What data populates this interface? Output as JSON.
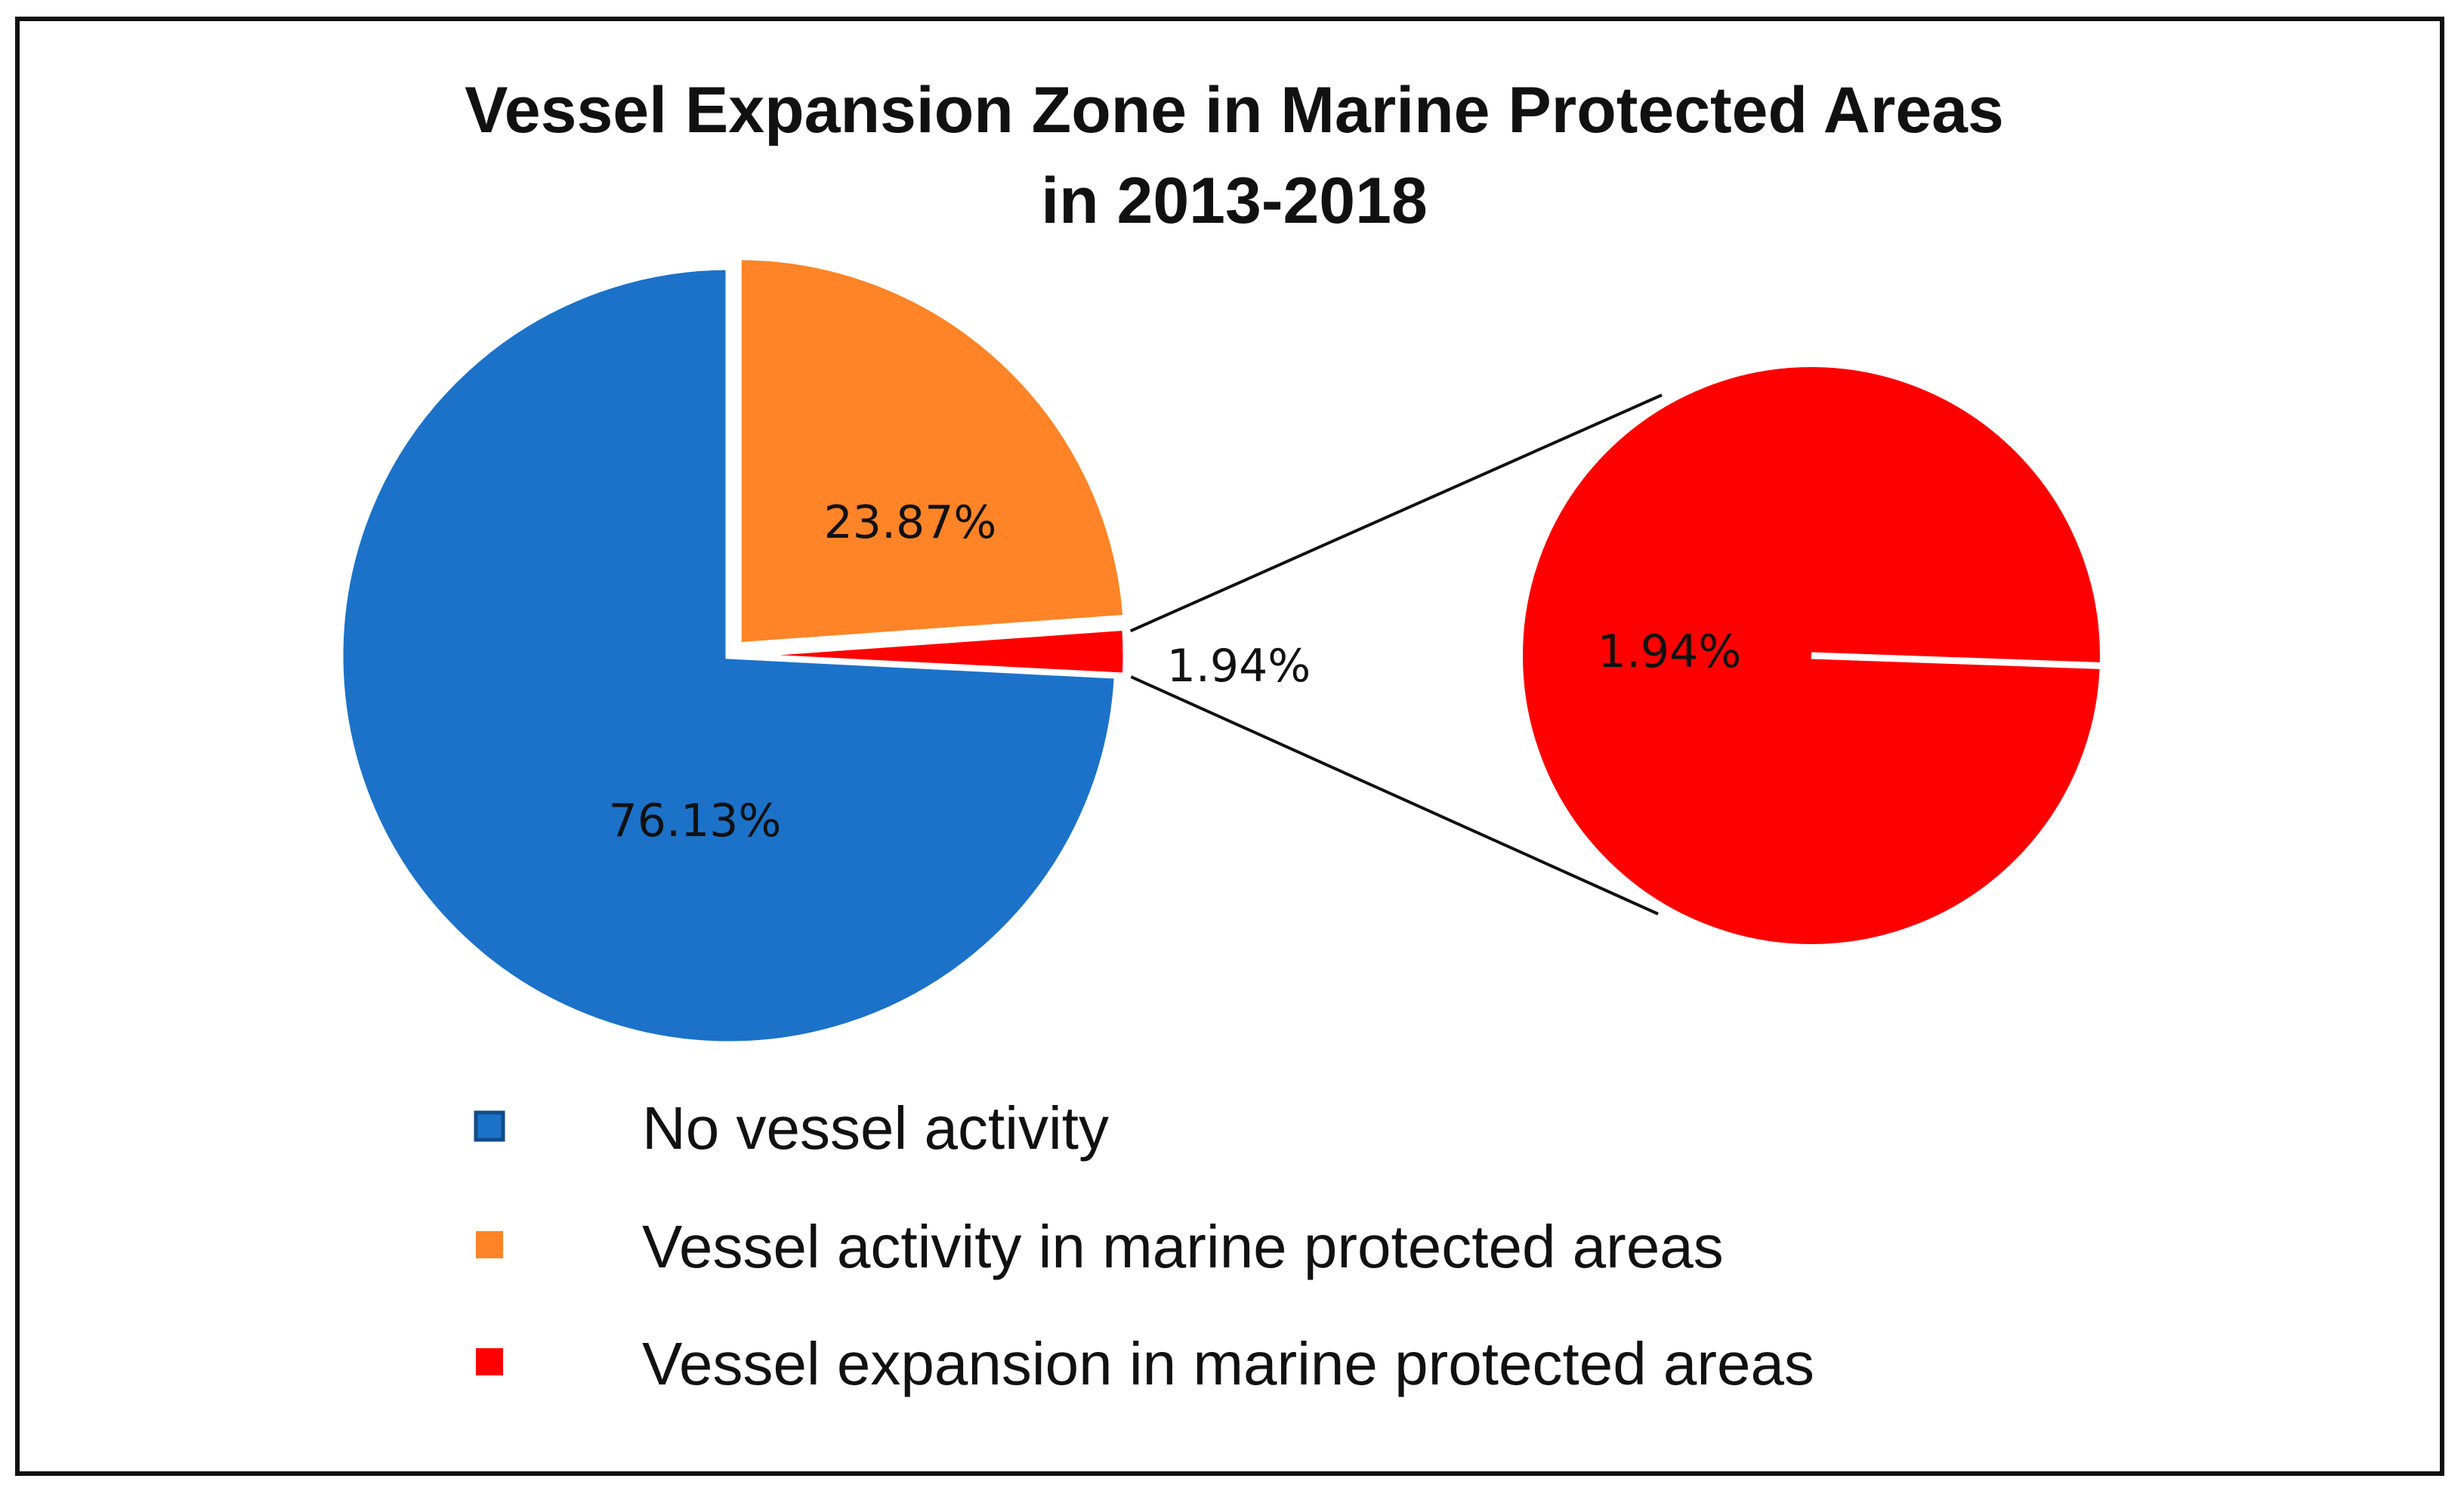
{
  "chart_data": {
    "type": "pie",
    "subtype": "pie-of-pie",
    "title": "Vessel Expansion Zone in Marine Protected Areas",
    "subtitle": "in 2013-2018",
    "categories": [
      "No vessel activity",
      "Vessel activity in marine protected areas",
      "Vessel expansion in marine protected areas"
    ],
    "values": [
      76.13,
      23.87,
      1.94
    ],
    "labels": [
      "76.13%",
      "23.87%",
      "1.94%"
    ],
    "colors": [
      "#1B72C8",
      "#FF8427",
      "#FF0000"
    ],
    "secondary_pie": {
      "categories": [
        "Vessel expansion in marine protected areas"
      ],
      "values": [
        1.94
      ],
      "labels": [
        "1.94%"
      ],
      "colors": [
        "#FF0000"
      ]
    },
    "legend_position": "bottom"
  }
}
